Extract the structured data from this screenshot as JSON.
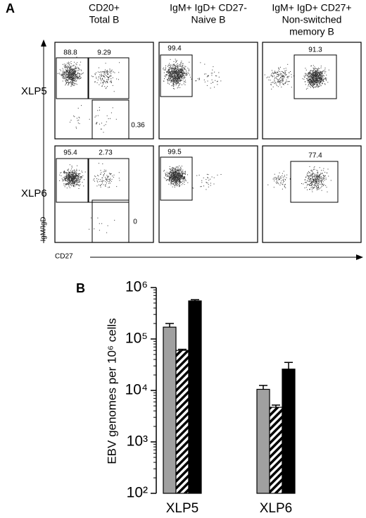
{
  "panel_a": {
    "letter": "A",
    "columns": [
      [
        "CD20+",
        "Total B"
      ],
      [
        "IgM+ IgD+ CD27-",
        "Naive B"
      ],
      [
        "IgM+ IgD+ CD27+",
        "Non-switched",
        "memory B"
      ]
    ],
    "rows": [
      "XLP5",
      "XLP6"
    ],
    "y_label": "IgM/IgD",
    "x_label": "CD27",
    "gates": [
      [
        [
          "88.8",
          "9.29",
          "0.36"
        ],
        [
          "99.4"
        ],
        [
          "91.3"
        ]
      ],
      [
        [
          "95.4",
          "2.73",
          "0"
        ],
        [
          "99.5"
        ],
        [
          "77.4"
        ]
      ]
    ]
  },
  "chart_data": {
    "type": "bar",
    "panel_letter": "B",
    "ylabel": "EBV genomes per 10⁶ cells",
    "categories": [
      "XLP5",
      "XLP6"
    ],
    "log_scale": true,
    "ylim": [
      100,
      1000000
    ],
    "yticks": [
      {
        "value": 100,
        "label": "10²"
      },
      {
        "value": 1000,
        "label": "10³"
      },
      {
        "value": 10000,
        "label": "10⁴"
      },
      {
        "value": 100000,
        "label": "10⁵"
      },
      {
        "value": 1000000,
        "label": "10⁶"
      }
    ],
    "series": [
      {
        "color": "#a0a0a0",
        "hatch": false,
        "values": [
          170000,
          10500
        ],
        "errors": [
          30000,
          2000
        ]
      },
      {
        "color": "#000000",
        "hatch": true,
        "values": [
          60000,
          4700
        ],
        "errors": [
          3000,
          500
        ]
      },
      {
        "color": "#000000",
        "hatch": false,
        "values": [
          550000,
          26000
        ],
        "errors": [
          30000,
          9000
        ]
      }
    ]
  }
}
